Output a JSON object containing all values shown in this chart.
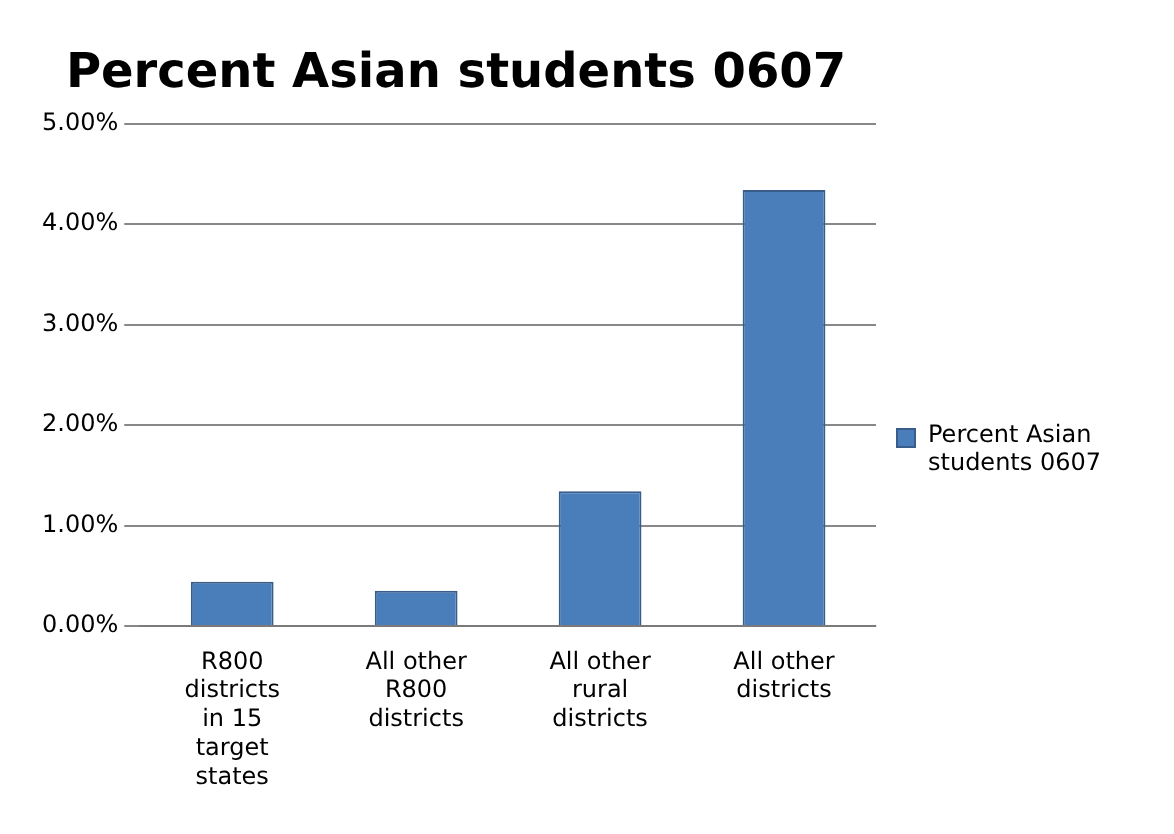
{
  "chart_data": {
    "type": "bar",
    "title": "Percent Asian students 0607",
    "categories": [
      "R800 districts in 15 target states",
      "All other R800 districts",
      "All other rural districts",
      "All other districts"
    ],
    "series": [
      {
        "name": "Percent Asian students 0607",
        "color": "#4a7ebb",
        "values": [
          0.44,
          0.35,
          1.34,
          4.34
        ]
      }
    ],
    "ylim": [
      0,
      5
    ],
    "yticks": [
      {
        "value": 0,
        "label": "0.00%"
      },
      {
        "value": 1,
        "label": "1.00%"
      },
      {
        "value": 2,
        "label": "2.00%"
      },
      {
        "value": 3,
        "label": "3.00%"
      },
      {
        "value": 4,
        "label": "4.00%"
      },
      {
        "value": 5,
        "label": "5.00%"
      }
    ],
    "grid": "y",
    "legend": "right"
  }
}
